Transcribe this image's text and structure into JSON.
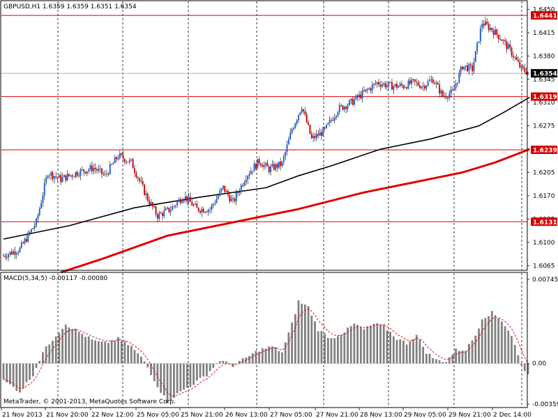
{
  "main_chart": {
    "header": "GBPUSD,H1  1.6359 1.6359 1.6351 1.6354",
    "symbol": "GBPUSD",
    "timeframe": "H1",
    "ohlc": {
      "open": 1.6359,
      "high": 1.6359,
      "low": 1.6351,
      "close": 1.6354
    },
    "current_price": "1.6354",
    "price_levels": [
      "1.6441",
      "1.6319",
      "1.6239",
      "1.6131"
    ],
    "price_level_color": "#d40000",
    "bull_color": "#2060e0",
    "bear_color": "#e00000"
  },
  "indicator": {
    "header": "MACD(5,34,5) -0.00117 -0.00080",
    "signal_color": "#e00000",
    "histogram_color": "#808080"
  },
  "footer": {
    "copyright": "MetaTrader, © 2001-2013, MetaQuotes Software Corp."
  },
  "chart_data": [
    {
      "type": "candlestick",
      "title": "GBPUSD,H1  1.6359 1.6359 1.6351 1.6354",
      "y_ticks": [
        "1.6450",
        "1.6415",
        "1.6380",
        "1.6345",
        "1.6310",
        "1.6275",
        "1.6240",
        "1.6205",
        "1.6170",
        "1.6135",
        "1.6100",
        "1.6065"
      ],
      "ylim": [
        1.6058,
        1.6462
      ],
      "x_ticks": [
        "21 Nov 2013",
        "21 Nov 20:00",
        "22 Nov 12:00",
        "25 Nov 05:00",
        "25 Nov 21:00",
        "26 Nov 13:00",
        "27 Nov 05:00",
        "27 Nov 21:00",
        "28 Nov 13:00",
        "29 Nov 05:00",
        "29 Nov 21:00",
        "2 Dec 14:00"
      ],
      "price_path": [
        [
          0,
          1.608
        ],
        [
          10,
          1.609
        ],
        [
          20,
          1.613
        ],
        [
          27,
          1.6205
        ],
        [
          35,
          1.6195
        ],
        [
          45,
          1.6205
        ],
        [
          55,
          1.6212
        ],
        [
          62,
          1.62
        ],
        [
          70,
          1.623
        ],
        [
          78,
          1.622
        ],
        [
          88,
          1.6165
        ],
        [
          94,
          1.614
        ],
        [
          102,
          1.615
        ],
        [
          110,
          1.617
        ],
        [
          118,
          1.615
        ],
        [
          126,
          1.615
        ],
        [
          134,
          1.6182
        ],
        [
          140,
          1.616
        ],
        [
          148,
          1.62
        ],
        [
          156,
          1.6222
        ],
        [
          162,
          1.621
        ],
        [
          170,
          1.6218
        ],
        [
          176,
          1.627
        ],
        [
          182,
          1.6305
        ],
        [
          188,
          1.6255
        ],
        [
          196,
          1.6268
        ],
        [
          204,
          1.63
        ],
        [
          212,
          1.631
        ],
        [
          220,
          1.6325
        ],
        [
          228,
          1.634
        ],
        [
          236,
          1.6335
        ],
        [
          244,
          1.6335
        ],
        [
          250,
          1.634
        ],
        [
          256,
          1.6335
        ],
        [
          262,
          1.6345
        ],
        [
          268,
          1.632
        ],
        [
          274,
          1.6325
        ],
        [
          280,
          1.6365
        ],
        [
          286,
          1.636
        ],
        [
          292,
          1.643
        ],
        [
          298,
          1.642
        ],
        [
          304,
          1.6405
        ],
        [
          310,
          1.6385
        ],
        [
          316,
          1.636
        ],
        [
          321,
          1.6355
        ]
      ],
      "series": [
        {
          "name": "",
          "color": "#000000",
          "points": [
            [
              0,
              1.6105
            ],
            [
              40,
              1.6125
            ],
            [
              80,
              1.6152
            ],
            [
              120,
              1.6168
            ],
            [
              160,
              1.6182
            ],
            [
              180,
              1.62
            ],
            [
              200,
              1.6215
            ],
            [
              230,
              1.624
            ],
            [
              260,
              1.6255
            ],
            [
              290,
              1.6275
            ],
            [
              305,
              1.6295
            ],
            [
              321,
              1.6318
            ]
          ]
        },
        {
          "name": "",
          "color": "#e00000",
          "points": [
            [
              35,
              1.6055
            ],
            [
              60,
              1.6075
            ],
            [
              100,
              1.611
            ],
            [
              140,
              1.613
            ],
            [
              180,
              1.615
            ],
            [
              220,
              1.6175
            ],
            [
              250,
              1.619
            ],
            [
              280,
              1.6205
            ],
            [
              300,
              1.622
            ],
            [
              321,
              1.624
            ]
          ]
        }
      ]
    },
    {
      "type": "bar",
      "title": "MACD(5,34,5) -0.00117 -0.00080",
      "y_ticks": [
        "0.00745",
        "0.00",
        "-0.00359"
      ],
      "ylim": [
        -0.0039,
        0.008
      ],
      "histogram_path": [
        [
          0,
          -0.0015
        ],
        [
          10,
          -0.0025
        ],
        [
          18,
          -0.001
        ],
        [
          24,
          0.001
        ],
        [
          32,
          0.0025
        ],
        [
          38,
          0.0035
        ],
        [
          46,
          0.0028
        ],
        [
          55,
          0.002
        ],
        [
          62,
          0.0018
        ],
        [
          70,
          0.0022
        ],
        [
          78,
          0.0015
        ],
        [
          86,
          0.0002
        ],
        [
          94,
          -0.002
        ],
        [
          100,
          -0.0034
        ],
        [
          108,
          -0.0025
        ],
        [
          116,
          -0.0018
        ],
        [
          124,
          -0.001
        ],
        [
          132,
          0.0003
        ],
        [
          140,
          -0.0002
        ],
        [
          148,
          0.0005
        ],
        [
          156,
          0.0012
        ],
        [
          164,
          0.0015
        ],
        [
          170,
          0.001
        ],
        [
          176,
          0.0035
        ],
        [
          180,
          0.0055
        ],
        [
          186,
          0.005
        ],
        [
          192,
          0.003
        ],
        [
          200,
          0.0022
        ],
        [
          208,
          0.0028
        ],
        [
          214,
          0.0035
        ],
        [
          220,
          0.003
        ],
        [
          226,
          0.0035
        ],
        [
          232,
          0.0033
        ],
        [
          240,
          0.0022
        ],
        [
          246,
          0.0018
        ],
        [
          252,
          0.0025
        ],
        [
          258,
          0.001
        ],
        [
          264,
          0.0003
        ],
        [
          270,
          0.0002
        ],
        [
          276,
          0.0012
        ],
        [
          282,
          0.0012
        ],
        [
          288,
          0.0025
        ],
        [
          292,
          0.004
        ],
        [
          298,
          0.0045
        ],
        [
          304,
          0.0038
        ],
        [
          310,
          0.0025
        ],
        [
          316,
          -0.0002
        ],
        [
          321,
          -0.0011
        ]
      ],
      "signal_color": "#e00000"
    }
  ]
}
